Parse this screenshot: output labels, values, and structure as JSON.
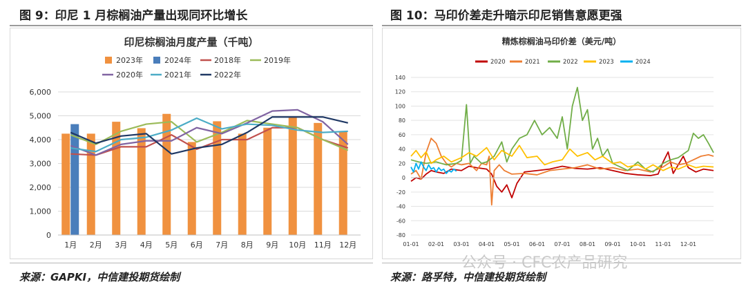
{
  "left_panel": {
    "figure_title": "图 9：印尼 1 月棕榈油产量出现同环比增长",
    "source": "来源：GAPKI，中信建投期货绘制"
  },
  "right_panel": {
    "figure_title": "图 10：马印价差走升暗示印尼销售意愿更强",
    "source": "来源：路孚特，中信建投期货绘制"
  },
  "watermark": "公众号 · CFC农产品研究",
  "chart_data": [
    {
      "type": "bar",
      "title": "印尼棕榈油月度产量（千吨）",
      "categories": [
        "1月",
        "2月",
        "3月",
        "4月",
        "5月",
        "6月",
        "7月",
        "8月",
        "9月",
        "10月",
        "11月",
        "12月"
      ],
      "ylim": [
        0,
        6000
      ],
      "yticks": [
        "0",
        "1,000",
        "2,000",
        "3,000",
        "4,000",
        "5,000",
        "6,000"
      ],
      "grid": true,
      "legend_position": "top",
      "bars": [
        {
          "name": "2023年",
          "color": "#f0913f",
          "values": [
            4250,
            4250,
            4750,
            4480,
            5080,
            3900,
            4770,
            4250,
            4500,
            4950,
            4700,
            4350
          ]
        },
        {
          "name": "2024年",
          "color": "#4a7ebb",
          "values": [
            4650,
            null,
            null,
            null,
            null,
            null,
            null,
            null,
            null,
            null,
            null,
            null
          ]
        }
      ],
      "lines": [
        {
          "name": "2018年",
          "color": "#c0504d",
          "values": [
            3400,
            3350,
            3700,
            3700,
            4200,
            3600,
            4000,
            4000,
            4500,
            4500,
            4000,
            3650
          ]
        },
        {
          "name": "2019年",
          "color": "#9bbb59",
          "values": [
            4200,
            3800,
            4350,
            4650,
            4750,
            3900,
            4300,
            4800,
            4650,
            4500,
            4000,
            3550
          ]
        },
        {
          "name": "2020年",
          "color": "#8064a2",
          "values": [
            3750,
            3350,
            3800,
            3950,
            3950,
            4500,
            4250,
            4700,
            5200,
            5250,
            4750,
            3800
          ]
        },
        {
          "name": "2021年",
          "color": "#4bacc6",
          "values": [
            3650,
            3500,
            4000,
            4100,
            4400,
            4900,
            4450,
            4650,
            4600,
            4400,
            4300,
            4350
          ]
        },
        {
          "name": "2022年",
          "color": "#1f3864",
          "values": [
            4300,
            3850,
            4150,
            4250,
            3400,
            3650,
            3800,
            4300,
            4950,
            4950,
            4950,
            4700
          ]
        }
      ]
    },
    {
      "type": "line",
      "title": "精炼棕榈油马印价差（美元/吨）",
      "x_tick_labels": [
        "01-01",
        "02-01",
        "03-01",
        "04-01",
        "05-01",
        "06-01",
        "07-01",
        "08-01",
        "09-01",
        "10-01",
        "11-01",
        "12-01"
      ],
      "ylim": [
        -80,
        140
      ],
      "yticks": [
        "-80",
        "-60",
        "-40",
        "-20",
        "0",
        "20",
        "40",
        "60",
        "80",
        "100",
        "120",
        "140"
      ],
      "grid": true,
      "legend_position": "top",
      "series": [
        {
          "name": "2020",
          "color": "#c00000",
          "points": [
            [
              0,
              -5
            ],
            [
              0.2,
              0
            ],
            [
              0.4,
              -2
            ],
            [
              0.6,
              5
            ],
            [
              0.8,
              10
            ],
            [
              1.0,
              8
            ],
            [
              1.3,
              6
            ],
            [
              1.6,
              12
            ],
            [
              2.0,
              10
            ],
            [
              2.3,
              16
            ],
            [
              2.6,
              14
            ],
            [
              3.0,
              12
            ],
            [
              3.2,
              5
            ],
            [
              3.4,
              -12
            ],
            [
              3.6,
              -20
            ],
            [
              3.8,
              -10
            ],
            [
              4.0,
              -28
            ],
            [
              4.2,
              -8
            ],
            [
              4.5,
              8
            ],
            [
              5.0,
              10
            ],
            [
              5.5,
              12
            ],
            [
              6.0,
              16
            ],
            [
              6.5,
              13
            ],
            [
              7.0,
              12
            ],
            [
              7.5,
              14
            ],
            [
              8.0,
              10
            ],
            [
              8.5,
              6
            ],
            [
              9.0,
              4
            ],
            [
              9.5,
              3
            ],
            [
              9.8,
              5
            ],
            [
              10.0,
              22
            ],
            [
              10.2,
              36
            ],
            [
              10.4,
              6
            ],
            [
              10.6,
              18
            ],
            [
              10.8,
              30
            ],
            [
              11.0,
              14
            ],
            [
              11.3,
              8
            ],
            [
              11.6,
              12
            ],
            [
              12.0,
              10
            ]
          ]
        },
        {
          "name": "2021",
          "color": "#ed7d31",
          "points": [
            [
              0,
              5
            ],
            [
              0.2,
              10
            ],
            [
              0.4,
              -2
            ],
            [
              0.6,
              35
            ],
            [
              0.8,
              55
            ],
            [
              1.0,
              48
            ],
            [
              1.2,
              30
            ],
            [
              1.4,
              20
            ],
            [
              1.6,
              15
            ],
            [
              1.8,
              20
            ],
            [
              2.0,
              18
            ],
            [
              2.3,
              20
            ],
            [
              2.6,
              10
            ],
            [
              2.8,
              20
            ],
            [
              3.0,
              18
            ],
            [
              3.1,
              30
            ],
            [
              3.2,
              -38
            ],
            [
              3.3,
              10
            ],
            [
              3.5,
              18
            ],
            [
              3.7,
              10
            ],
            [
              4.0,
              5
            ],
            [
              4.5,
              6
            ],
            [
              5.0,
              4
            ],
            [
              5.5,
              10
            ],
            [
              6.0,
              12
            ],
            [
              6.5,
              14
            ],
            [
              7.0,
              18
            ],
            [
              7.5,
              12
            ],
            [
              8.0,
              14
            ],
            [
              8.5,
              10
            ],
            [
              9.0,
              12
            ],
            [
              9.5,
              8
            ],
            [
              10.0,
              15
            ],
            [
              10.3,
              22
            ],
            [
              10.6,
              18
            ],
            [
              10.9,
              20
            ],
            [
              11.2,
              25
            ],
            [
              11.5,
              30
            ],
            [
              11.8,
              32
            ],
            [
              12.0,
              30
            ]
          ]
        },
        {
          "name": "2022",
          "color": "#70ad47",
          "points": [
            [
              0,
              25
            ],
            [
              0.3,
              22
            ],
            [
              0.6,
              20
            ],
            [
              1.0,
              22
            ],
            [
              1.4,
              18
            ],
            [
              1.8,
              20
            ],
            [
              2.0,
              24
            ],
            [
              2.2,
              102
            ],
            [
              2.35,
              20
            ],
            [
              2.5,
              30
            ],
            [
              2.8,
              20
            ],
            [
              3.0,
              22
            ],
            [
              3.3,
              30
            ],
            [
              3.6,
              50
            ],
            [
              3.8,
              22
            ],
            [
              4.0,
              40
            ],
            [
              4.3,
              55
            ],
            [
              4.6,
              60
            ],
            [
              4.9,
              80
            ],
            [
              5.2,
              60
            ],
            [
              5.5,
              70
            ],
            [
              5.8,
              55
            ],
            [
              6.0,
              85
            ],
            [
              6.2,
              40
            ],
            [
              6.4,
              100
            ],
            [
              6.6,
              126
            ],
            [
              6.8,
              80
            ],
            [
              7.0,
              95
            ],
            [
              7.2,
              40
            ],
            [
              7.4,
              55
            ],
            [
              7.6,
              30
            ],
            [
              7.8,
              40
            ],
            [
              8.0,
              20
            ],
            [
              8.3,
              15
            ],
            [
              8.6,
              10
            ],
            [
              9.0,
              22
            ],
            [
              9.3,
              12
            ],
            [
              9.6,
              8
            ],
            [
              10.0,
              20
            ],
            [
              10.3,
              25
            ],
            [
              10.6,
              28
            ],
            [
              11.0,
              38
            ],
            [
              11.2,
              62
            ],
            [
              11.4,
              55
            ],
            [
              11.6,
              60
            ],
            [
              11.8,
              48
            ],
            [
              12.0,
              35
            ]
          ]
        },
        {
          "name": "2023",
          "color": "#ffc000",
          "points": [
            [
              0,
              30
            ],
            [
              0.2,
              38
            ],
            [
              0.4,
              28
            ],
            [
              0.6,
              36
            ],
            [
              0.8,
              20
            ],
            [
              1.0,
              25
            ],
            [
              1.3,
              30
            ],
            [
              1.6,
              22
            ],
            [
              2.0,
              28
            ],
            [
              2.3,
              35
            ],
            [
              2.6,
              30
            ],
            [
              3.0,
              42
            ],
            [
              3.3,
              25
            ],
            [
              3.6,
              38
            ],
            [
              4.0,
              30
            ],
            [
              4.3,
              45
            ],
            [
              4.6,
              28
            ],
            [
              5.0,
              30
            ],
            [
              5.3,
              18
            ],
            [
              5.6,
              22
            ],
            [
              6.0,
              25
            ],
            [
              6.3,
              40
            ],
            [
              6.6,
              30
            ],
            [
              7.0,
              35
            ],
            [
              7.3,
              25
            ],
            [
              7.6,
              30
            ],
            [
              8.0,
              20
            ],
            [
              8.3,
              22
            ],
            [
              8.6,
              15
            ],
            [
              9.0,
              18
            ],
            [
              9.3,
              12
            ],
            [
              9.6,
              18
            ],
            [
              10.0,
              10
            ],
            [
              10.3,
              15
            ],
            [
              10.6,
              12
            ],
            [
              11.0,
              18
            ],
            [
              11.3,
              14
            ],
            [
              11.6,
              16
            ],
            [
              12.0,
              15
            ]
          ]
        },
        {
          "name": "2024",
          "color": "#00b0f0",
          "points": [
            [
              0,
              15
            ],
            [
              0.1,
              8
            ],
            [
              0.2,
              20
            ],
            [
              0.3,
              12
            ],
            [
              0.4,
              22
            ],
            [
              0.5,
              15
            ],
            [
              0.6,
              10
            ],
            [
              0.7,
              18
            ],
            [
              0.8,
              12
            ],
            [
              0.9,
              14
            ],
            [
              1.0,
              8
            ],
            [
              1.1,
              14
            ],
            [
              1.2,
              10
            ],
            [
              1.3,
              12
            ],
            [
              1.4,
              6
            ],
            [
              1.5,
              10
            ],
            [
              1.6,
              8
            ],
            [
              1.7,
              12
            ],
            [
              1.8,
              9
            ]
          ]
        }
      ]
    }
  ]
}
